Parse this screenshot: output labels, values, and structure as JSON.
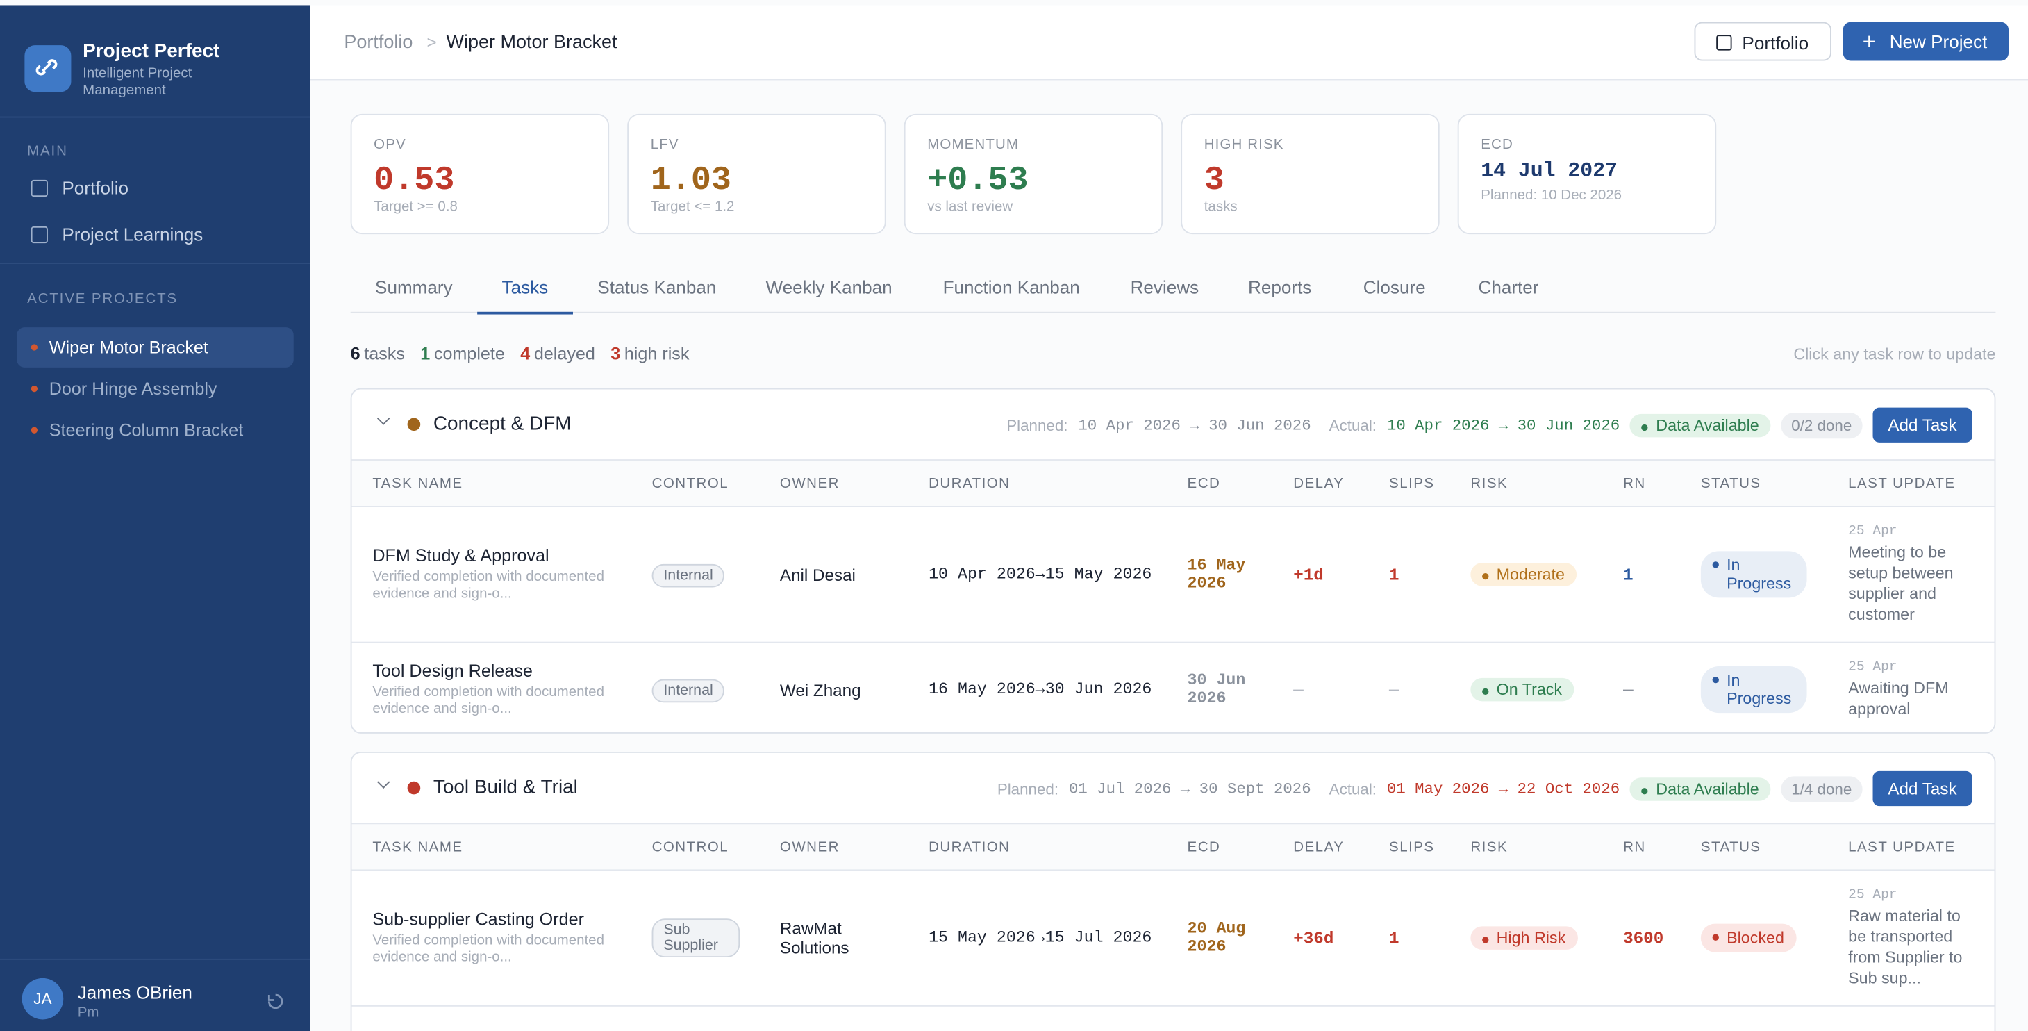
{
  "brand": {
    "name": "Project Perfect",
    "tagline": "Intelligent Project Management"
  },
  "nav": {
    "main_label": "MAIN",
    "items": [
      "Portfolio",
      "Project Learnings"
    ],
    "active_label": "ACTIVE PROJECTS",
    "projects": [
      "Wiper Motor Bracket",
      "Door Hinge Assembly",
      "Steering Column Bracket"
    ]
  },
  "user": {
    "initials": "JA",
    "name": "James OBrien",
    "role": "Pm"
  },
  "header": {
    "breadcrumb": [
      "Portfolio",
      "Wiper Motor Bracket"
    ],
    "separator": ">",
    "buttons": [
      "Portfolio",
      "New Project"
    ]
  },
  "kpis": [
    {
      "label": "OPV",
      "value": "0.53",
      "note": "Target >= 0.8",
      "color": "#c0392b"
    },
    {
      "label": "LFV",
      "value": "1.03",
      "note": "Target <= 1.2",
      "color": "#a0651c"
    },
    {
      "label": "MOMENTUM",
      "value": "+0.53",
      "note": "vs last review",
      "color": "#2e7d4f"
    },
    {
      "label": "HIGH RISK",
      "value": "3",
      "note": "tasks",
      "color": "#c0392b"
    },
    {
      "label": "ECD",
      "value": "14 Jul 2027",
      "note": "Planned: 10 Dec 2026",
      "color": "#1e3a6e"
    }
  ],
  "tabs": [
    "Summary",
    "Tasks",
    "Status Kanban",
    "Weekly Kanban",
    "Function Kanban",
    "Reviews",
    "Reports",
    "Closure",
    "Charter"
  ],
  "summary": [
    {
      "value": "6",
      "label": "tasks",
      "color": "#1d2433"
    },
    {
      "value": "1",
      "label": "complete",
      "color": "#2e7d4f"
    },
    {
      "value": "4",
      "label": "delayed",
      "color": "#c0392b"
    },
    {
      "value": "3",
      "label": "high risk",
      "color": "#c0392b"
    }
  ],
  "hint": "Click any task row to update",
  "columns": [
    "TASK NAME",
    "CONTROL",
    "OWNER",
    "DURATION",
    "ECD",
    "DELAY",
    "SLIPS",
    "RISK",
    "RN",
    "STATUS",
    "LAST UPDATE"
  ],
  "groups": [
    {
      "name": "Concept & DFM",
      "dot_color": "#a0651c",
      "planned_label": "Planned:",
      "planned": "10 Apr 2026 → 30 Jun 2026",
      "actual_label": "Actual:",
      "actual": "10 Apr 2026 → 30 Jun 2026",
      "actual_color": "#2e7d4f",
      "data_status": "Data Available",
      "done": "0/2 done",
      "add": "Add Task",
      "tasks": [
        {
          "name": "DFM Study & Approval",
          "desc": "Verified completion with documented evidence and sign-o...",
          "control": "Internal",
          "owner": "Anil Desai",
          "duration": "10 Apr 2026→15 May 2026",
          "ecd": "16 May 2026",
          "ecd_color": "#a0651c",
          "delay": "+1d",
          "slips": "1",
          "flag_color": "#c0392b",
          "risk": "Moderate",
          "risk_color": "#b0701a",
          "risk_bg": "#fdf0dc",
          "rn": "1",
          "rn_color": "#2c5aa0",
          "status": "In Progress",
          "status_color": "#2c5aa0",
          "status_bg": "#e8eef6",
          "update_date": "25 Apr",
          "update": "Meeting to be setup between supplier and customer"
        },
        {
          "name": "Tool Design Release",
          "desc": "Verified completion with documented evidence and sign-o...",
          "control": "Internal",
          "owner": "Wei Zhang",
          "duration": "16 May 2026→30 Jun 2026",
          "ecd": "30 Jun 2026",
          "ecd_color": "#8a919c",
          "delay": "—",
          "slips": "—",
          "flag_color": "#b5bac3",
          "risk": "On Track",
          "risk_color": "#2e7d4f",
          "risk_bg": "#e3f3e8",
          "rn": "—",
          "rn_color": "#8a919c",
          "status": "In Progress",
          "status_color": "#2c5aa0",
          "status_bg": "#e8eef6",
          "update_date": "25 Apr",
          "update": "Awaiting DFM approval"
        }
      ]
    },
    {
      "name": "Tool Build & Trial",
      "dot_color": "#c0392b",
      "planned_label": "Planned:",
      "planned": "01 Jul 2026 → 30 Sept 2026",
      "actual_label": "Actual:",
      "actual": "01 May 2026 → 22 Oct 2026",
      "actual_color": "#c0392b",
      "data_status": "Data Available",
      "done": "1/4 done",
      "add": "Add Task",
      "tasks": [
        {
          "name": "Sub-supplier Casting Order",
          "desc": "Verified completion with documented evidence and sign-o...",
          "control": "Sub Supplier",
          "owner": "RawMat Solutions",
          "duration": "15 May 2026→15 Jul 2026",
          "ecd": "20 Aug 2026",
          "ecd_color": "#a0651c",
          "delay": "+36d",
          "slips": "1",
          "flag_color": "#c0392b",
          "risk": "High Risk",
          "risk_color": "#c0392b",
          "risk_bg": "#fbe6e4",
          "rn": "3600",
          "rn_color": "#c0392b",
          "status": "Blocked",
          "status_color": "#c0392b",
          "status_bg": "#fbe6e4",
          "update_date": "25 Apr",
          "update": "Raw material to be transported from Supplier to Sub sup..."
        }
      ]
    }
  ]
}
